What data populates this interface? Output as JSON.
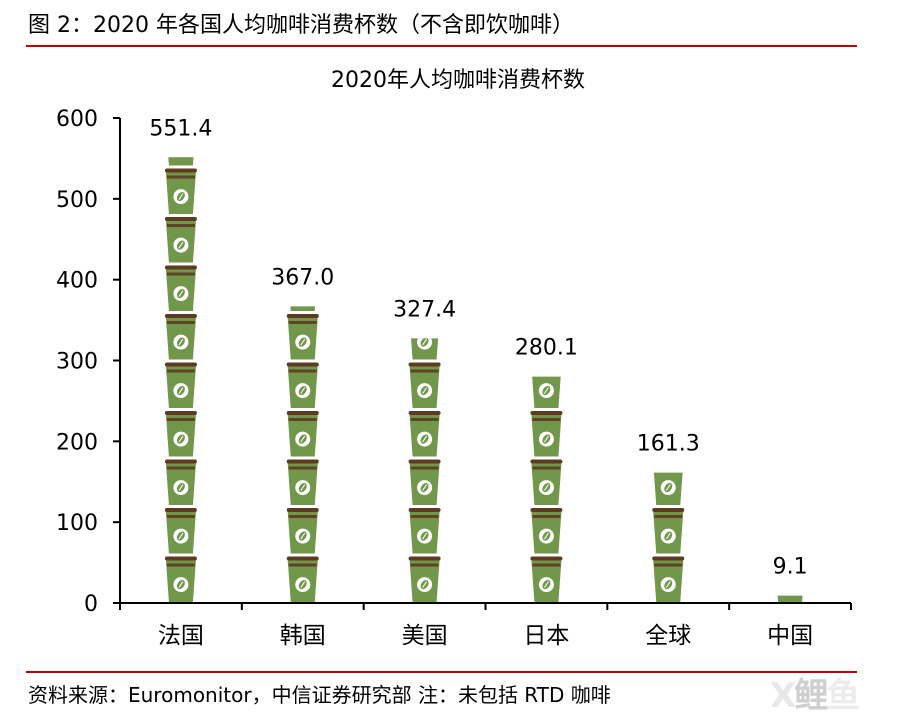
{
  "figure_title": "图 2：2020 年各国人均咖啡消费杯数（不含即饮咖啡）",
  "source_note": "资料来源：Euromonitor，中信证券研究部  注：未包括 RTD 咖啡",
  "watermark": [
    "X",
    "鲤",
    "鱼"
  ],
  "colors": {
    "cup": "#70974a",
    "cup_dark": "#5e3a22",
    "rule": "#c00000"
  },
  "chart_data": {
    "type": "bar",
    "title": "2020年人均咖啡消费杯数",
    "categories": [
      "法国",
      "韩国",
      "美国",
      "日本",
      "全球",
      "中国"
    ],
    "values": [
      551.4,
      367.0,
      327.4,
      280.1,
      161.3,
      9.1
    ],
    "value_labels": [
      "551.4",
      "367.0",
      "327.4",
      "280.1",
      "161.3",
      "9.1"
    ],
    "ylim": [
      0,
      600
    ],
    "yticks": [
      0,
      100,
      200,
      300,
      400,
      500,
      600
    ],
    "xlabel": "",
    "ylabel": "",
    "grid": false,
    "legend": "none",
    "mark_style": "stacked coffee cup icons"
  }
}
